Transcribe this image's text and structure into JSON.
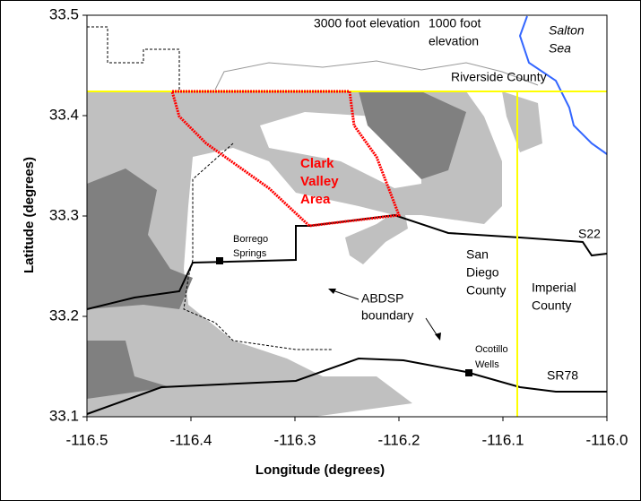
{
  "chart_data": {
    "type": "map",
    "x_label": "Longitude (degrees)",
    "y_label": "Latitude (degrees)",
    "xlim": [
      -116.5,
      -116.0
    ],
    "ylim": [
      33.1,
      33.5
    ],
    "xticks": [
      -116.5,
      -116.4,
      -116.3,
      -116.2,
      -116.1,
      {
        "value": -116.0,
        "label": "-116.0"
      }
    ],
    "yticks": [
      33.1,
      33.2,
      33.3,
      33.4,
      33.5
    ],
    "annotations": [
      [
        "3000 foot elevation"
      ],
      [
        "1000 foot",
        "elevation"
      ],
      [
        "Salton",
        "Sea"
      ],
      [
        "Riverside County"
      ],
      [
        "Clark",
        "Valley",
        "Area"
      ],
      [
        "Borrego",
        "Springs"
      ],
      [
        "S22"
      ],
      [
        "San",
        "Diego",
        "County"
      ],
      [
        "Imperial",
        "County"
      ],
      [
        "ABDSP",
        "boundary"
      ],
      [
        "Ocotillo",
        "Wells"
      ],
      [
        "SR78"
      ]
    ]
  }
}
